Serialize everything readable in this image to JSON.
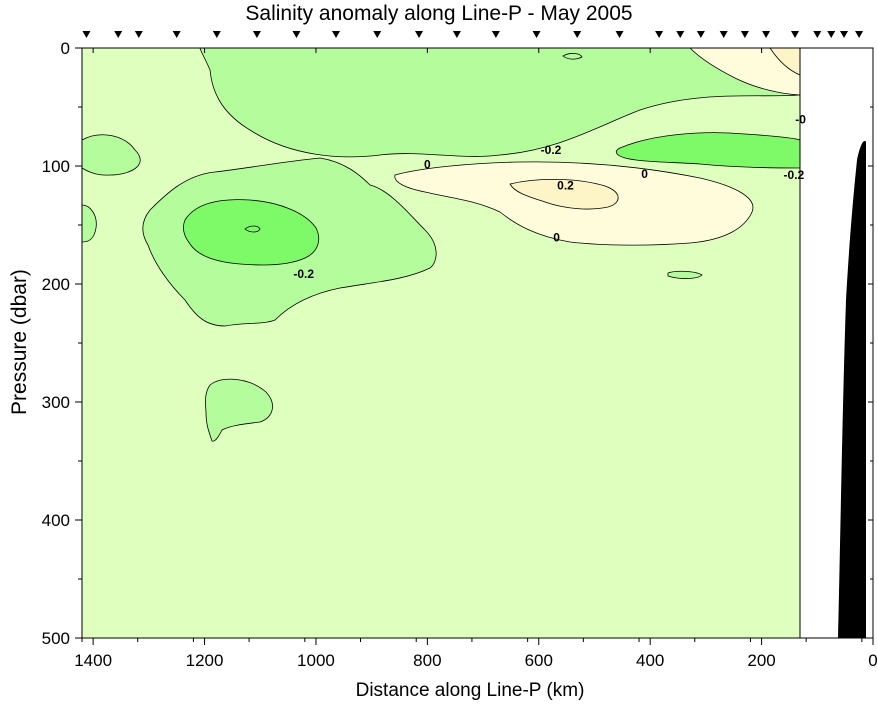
{
  "chart_data": {
    "type": "heatmap",
    "title": "Salinity anomaly along Line-P - May 2005",
    "xlabel": "Distance along Line-P (km)",
    "ylabel": "Pressure (dbar)",
    "xlim": [
      1420,
      0
    ],
    "ylim": [
      0,
      500
    ],
    "x_ticks": [
      1400,
      1200,
      1000,
      800,
      600,
      400,
      200,
      0
    ],
    "y_ticks": [
      0,
      100,
      200,
      300,
      400,
      500
    ],
    "station_markers_km": [
      1412,
      1355,
      1318,
      1250,
      1178,
      1106,
      1035,
      964,
      890,
      815,
      747,
      677,
      604,
      531,
      455,
      384,
      346,
      309,
      268,
      230,
      192,
      140,
      100,
      75,
      52,
      25
    ],
    "contour_levels": [
      -0.4,
      -0.2,
      0,
      0.2,
      0.4
    ],
    "contour_labels": [
      {
        "text": "0",
        "x": 800,
        "y": 102
      },
      {
        "text": "-0.2",
        "x": 578,
        "y": 90
      },
      {
        "text": "0",
        "x": 410,
        "y": 110
      },
      {
        "text": "0.2",
        "x": 552,
        "y": 120
      },
      {
        "text": "0",
        "x": 568,
        "y": 164
      },
      {
        "text": "-0.2",
        "x": 1022,
        "y": 195
      },
      {
        "text": "-0.2",
        "x": 142,
        "y": 111
      },
      {
        "text": "-0",
        "x": 130,
        "y": 64
      }
    ],
    "anomaly_regions": [
      {
        "level": "-0.2 to 0",
        "description": "weak fresh anomaly"
      },
      {
        "level": "-0.4 to -0.2",
        "description": "fresh core"
      },
      {
        "level": "0 to 0.2",
        "description": "weak salty anomaly"
      },
      {
        "level": "0.2 to 0.4",
        "description": "salty core"
      }
    ],
    "colors": {
      "background_anomaly": "#dfffbf",
      "fresh_weak": "#b4fc9c",
      "fresh_strong": "#7ef968",
      "salty_weak": "#fefcdb",
      "salty_strong": "#fdf5c8",
      "bathymetry": "#000000",
      "no_data": "#ffffff"
    }
  }
}
